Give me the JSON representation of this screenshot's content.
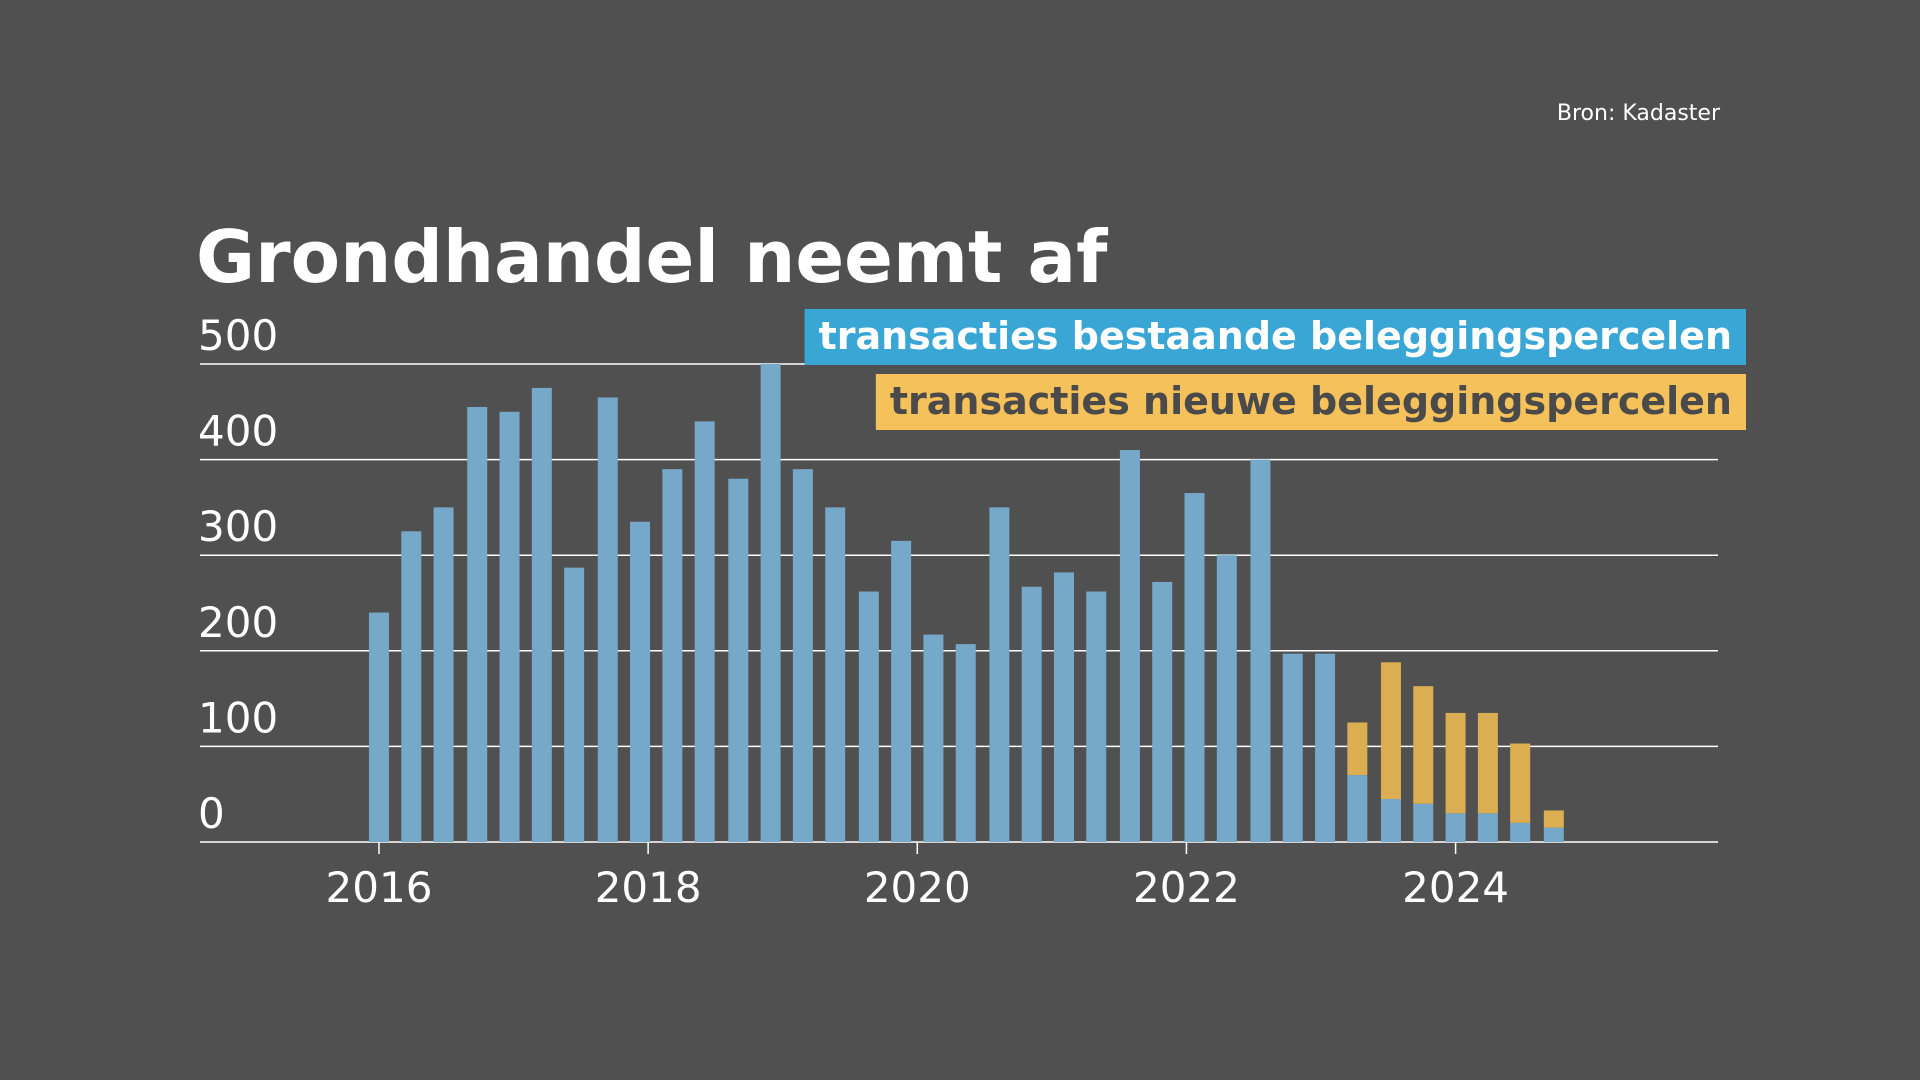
{
  "source": "Bron: Kadaster",
  "chart_data": {
    "type": "bar",
    "title": "Grondhandel neemt af",
    "stacked": true,
    "x": [
      2016.0,
      2016.24,
      2016.48,
      2016.73,
      2016.97,
      2017.21,
      2017.45,
      2017.7,
      2017.94,
      2018.18,
      2018.42,
      2018.67,
      2018.91,
      2019.15,
      2019.39,
      2019.64,
      2019.88,
      2020.12,
      2020.36,
      2020.61,
      2020.85,
      2021.09,
      2021.33,
      2021.58,
      2021.82,
      2022.06,
      2022.3,
      2022.55,
      2022.79,
      2023.03,
      2023.27,
      2023.52,
      2023.76,
      2024.0,
      2024.24,
      2024.48,
      2024.73
    ],
    "series": [
      {
        "name": "transacties bestaande beleggingspercelen",
        "color": "#76a8c9",
        "legend_color": "#3aa6d6",
        "values": [
          240,
          325,
          350,
          455,
          450,
          475,
          287,
          465,
          335,
          390,
          440,
          380,
          500,
          390,
          350,
          262,
          315,
          217,
          207,
          350,
          267,
          282,
          262,
          410,
          272,
          365,
          300,
          400,
          197,
          197,
          70,
          45,
          40,
          30,
          30,
          20,
          15
        ]
      },
      {
        "name": "transacties nieuwe beleggingspercelen",
        "color": "#dcae52",
        "legend_color": "#f5c15a",
        "values": [
          null,
          null,
          null,
          null,
          null,
          null,
          null,
          null,
          null,
          null,
          null,
          null,
          null,
          null,
          null,
          null,
          null,
          null,
          null,
          null,
          null,
          null,
          null,
          null,
          null,
          null,
          null,
          null,
          null,
          null,
          55,
          143,
          123,
          105,
          105,
          83,
          18
        ]
      }
    ],
    "xlim": [
      2014.67,
      2025.95
    ],
    "xticks": [
      2016,
      2018,
      2020,
      2022,
      2024
    ],
    "ylim": [
      0,
      500
    ],
    "yticks": [
      0,
      100,
      200,
      300,
      400,
      500
    ],
    "grid": true
  }
}
